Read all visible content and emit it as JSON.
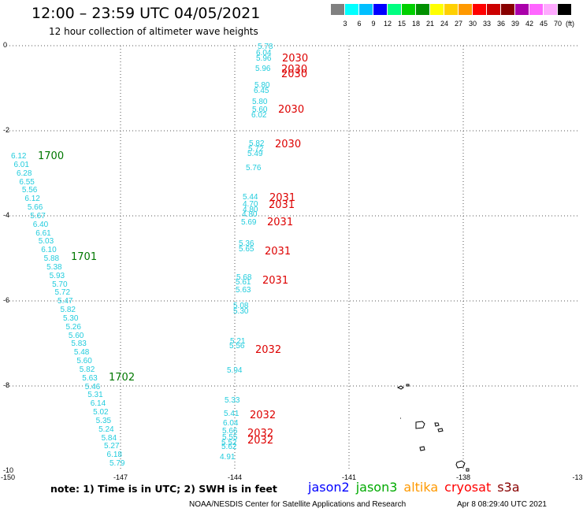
{
  "header": {
    "title": "12:00 – 23:59 UTC 04/05/2021",
    "subtitle": "12 hour collection of altimeter wave heights"
  },
  "scale": {
    "colors": [
      "#808080",
      "#00ffff",
      "#00bfff",
      "#0000ff",
      "#00ff80",
      "#00d000",
      "#009000",
      "#ffff00",
      "#ffd000",
      "#ff9900",
      "#ff0000",
      "#cc0000",
      "#880000",
      "#aa00aa",
      "#ff66ff",
      "#ffaaff",
      "#000000"
    ],
    "labels": [
      "3",
      "6",
      "9",
      "12",
      "15",
      "18",
      "21",
      "24",
      "27",
      "30",
      "33",
      "36",
      "39",
      "42",
      "45",
      "70"
    ],
    "units": "(ft)"
  },
  "axes": {
    "y_ticks": [
      "0",
      "-2",
      "-4",
      "-6",
      "-8",
      "-10"
    ],
    "x_ticks": [
      "-150",
      "-147",
      "-144",
      "-141",
      "-138",
      "-13"
    ]
  },
  "tracks": [
    {
      "name": "pass-1700",
      "time": "1700",
      "time_color": "#007700",
      "values": [
        "6.12",
        "6.01",
        "6.28",
        "6.55",
        "5.56",
        "6.12",
        "5.66",
        "5.67",
        "6.40",
        "6.61",
        "5.03",
        "6.10",
        "5.88",
        "5.38",
        "5.93",
        "5.70",
        "5.72",
        "5.47",
        "5.82",
        "5.30",
        "5.26",
        "5.60",
        "5.83",
        "5.48",
        "5.60",
        "5.82",
        "5.63",
        "5.46",
        "5.31",
        "6.14",
        "5.02",
        "5.35",
        "5.24",
        "5.84",
        "5.27",
        "6.18",
        "5.79"
      ]
    },
    {
      "name": "pass-2030",
      "values": [
        "5.78",
        "6.04",
        "5.96",
        "5.96",
        "5.80",
        "6.45",
        "5.80",
        "5.60",
        "6.02",
        "5.82",
        "5.72",
        "5.49",
        "5.76"
      ]
    },
    {
      "name": "pass-2031",
      "values": [
        "5.44",
        "4.70",
        "4.80",
        "4.80",
        "5.69",
        "5.36",
        "5.65",
        "5.68",
        "5.61",
        "5.63",
        "5.08",
        "5.30"
      ]
    },
    {
      "name": "pass-2032",
      "values": [
        "5.21",
        "5.56",
        "5.94",
        "5.33",
        "5.41",
        "6.04",
        "5.66",
        "5.55",
        "5.52",
        "5.62",
        "4.91"
      ]
    }
  ],
  "time_labels": [
    {
      "text": "1700",
      "color": "#007700"
    },
    {
      "text": "1701",
      "color": "#007700"
    },
    {
      "text": "1702",
      "color": "#007700"
    },
    {
      "text": "2030",
      "color": "#dd0000"
    },
    {
      "text": "2030",
      "color": "#dd0000"
    },
    {
      "text": "2030",
      "color": "#dd0000"
    },
    {
      "text": "2030",
      "color": "#dd0000"
    },
    {
      "text": "2030",
      "color": "#dd0000"
    },
    {
      "text": "2031",
      "color": "#dd0000"
    },
    {
      "text": "2031",
      "color": "#dd0000"
    },
    {
      "text": "2031",
      "color": "#dd0000"
    },
    {
      "text": "2031",
      "color": "#dd0000"
    },
    {
      "text": "2031",
      "color": "#dd0000"
    },
    {
      "text": "2032",
      "color": "#dd0000"
    },
    {
      "text": "2032",
      "color": "#dd0000"
    },
    {
      "text": "2032",
      "color": "#dd0000"
    },
    {
      "text": "2032",
      "color": "#dd0000"
    }
  ],
  "footer": {
    "note": "note:  1) Time is in UTC;  2) SWH is in feet",
    "legend": [
      {
        "label": "jason2",
        "color": "#0000ff"
      },
      {
        "label": "jason3",
        "color": "#00aa00"
      },
      {
        "label": "altika",
        "color": "#ff9900"
      },
      {
        "label": "cryosat",
        "color": "#ff0000"
      },
      {
        "label": "s3a",
        "color": "#880000"
      }
    ],
    "credit": "NOAA/NESDIS Center for Satellite Applications and Research",
    "timestamp": "Apr  8 08:29:40 UTC 2021"
  }
}
